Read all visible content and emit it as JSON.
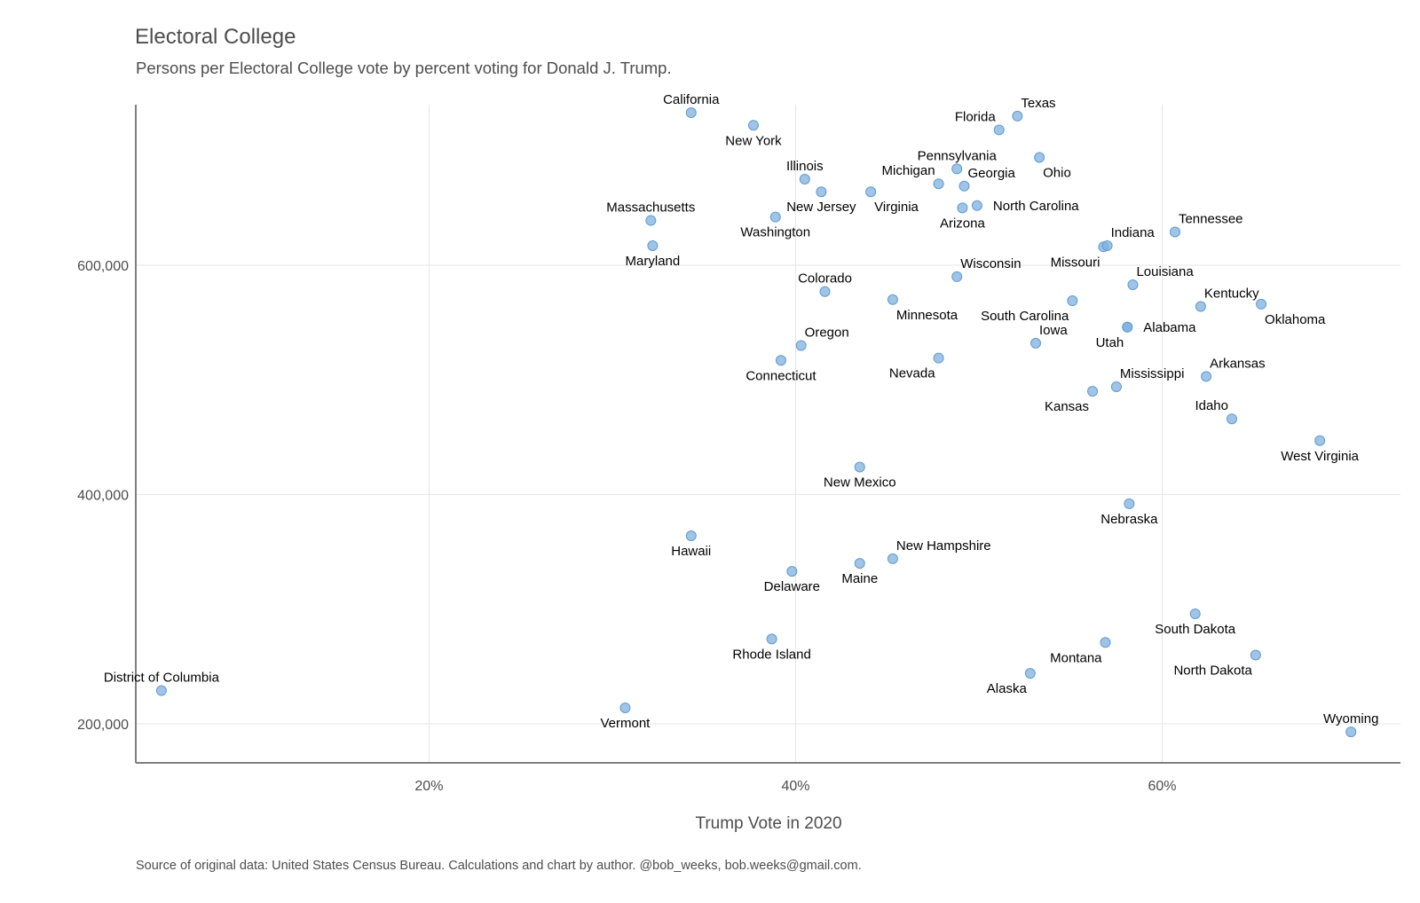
{
  "title": "Electoral College",
  "subtitle": "Persons per Electoral College vote by percent voting for Donald J. Trump.",
  "caption": "Source of original data: United States Census Bureau. Calculations and chart by author. @bob_weeks, bob.weeks@gmail.com.",
  "chart_data": {
    "type": "scatter",
    "title": "Electoral College",
    "subtitle": "Persons per Electoral College vote by percent voting for Donald J. Trump.",
    "xlabel": "Trump Vote in 2020",
    "ylabel": "",
    "xlim": [
      0.04,
      0.73
    ],
    "ylim": [
      166000,
      740000
    ],
    "x_ticks": [
      0.2,
      0.4,
      0.6
    ],
    "x_tick_labels": [
      "20%",
      "40%",
      "60%"
    ],
    "y_ticks": [
      200000,
      400000,
      600000
    ],
    "y_tick_labels": [
      "200,000",
      "400,000",
      "600,000"
    ],
    "grid": true,
    "point_color": "#7fb0dc",
    "points": [
      {
        "label": "District of Columbia",
        "x": 0.054,
        "y": 229000,
        "pos": "above"
      },
      {
        "label": "Vermont",
        "x": 0.307,
        "y": 214000,
        "pos": "below"
      },
      {
        "label": "Hawaii",
        "x": 0.343,
        "y": 364000,
        "pos": "below"
      },
      {
        "label": "California",
        "x": 0.343,
        "y": 733000,
        "pos": "above"
      },
      {
        "label": "Massachusetts",
        "x": 0.321,
        "y": 639000,
        "pos": "above"
      },
      {
        "label": "Maryland",
        "x": 0.322,
        "y": 617000,
        "pos": "below"
      },
      {
        "label": "New York",
        "x": 0.377,
        "y": 722000,
        "pos": "below"
      },
      {
        "label": "Washington",
        "x": 0.389,
        "y": 642000,
        "pos": "below"
      },
      {
        "label": "Illinois",
        "x": 0.405,
        "y": 675000,
        "pos": "above"
      },
      {
        "label": "New Jersey",
        "x": 0.414,
        "y": 664000,
        "pos": "below"
      },
      {
        "label": "Colorado",
        "x": 0.416,
        "y": 577000,
        "pos": "above"
      },
      {
        "label": "Oregon",
        "x": 0.403,
        "y": 530000,
        "pos": "above-right"
      },
      {
        "label": "Connecticut",
        "x": 0.392,
        "y": 517000,
        "pos": "below"
      },
      {
        "label": "Delaware",
        "x": 0.398,
        "y": 333000,
        "pos": "below"
      },
      {
        "label": "Rhode Island",
        "x": 0.387,
        "y": 274000,
        "pos": "below"
      },
      {
        "label": "New Mexico",
        "x": 0.435,
        "y": 424000,
        "pos": "below"
      },
      {
        "label": "Maine",
        "x": 0.435,
        "y": 340000,
        "pos": "below"
      },
      {
        "label": "New Hampshire",
        "x": 0.453,
        "y": 344000,
        "pos": "above-right"
      },
      {
        "label": "Virginia",
        "x": 0.441,
        "y": 664000,
        "pos": "below-right"
      },
      {
        "label": "Minnesota",
        "x": 0.453,
        "y": 570000,
        "pos": "below-right"
      },
      {
        "label": "Michigan",
        "x": 0.478,
        "y": 671000,
        "pos": "above-left"
      },
      {
        "label": "Nevada",
        "x": 0.478,
        "y": 519000,
        "pos": "below-left"
      },
      {
        "label": "Pennsylvania",
        "x": 0.488,
        "y": 684000,
        "pos": "above"
      },
      {
        "label": "Arizona",
        "x": 0.491,
        "y": 650000,
        "pos": "below"
      },
      {
        "label": "Wisconsin",
        "x": 0.488,
        "y": 590000,
        "pos": "above-right"
      },
      {
        "label": "Georgia",
        "x": 0.492,
        "y": 669000,
        "pos": "above-right"
      },
      {
        "label": "North Carolina",
        "x": 0.499,
        "y": 652000,
        "pos": "right"
      },
      {
        "label": "Florida",
        "x": 0.511,
        "y": 718000,
        "pos": "above-left"
      },
      {
        "label": "Texas",
        "x": 0.521,
        "y": 730000,
        "pos": "above-right"
      },
      {
        "label": "Ohio",
        "x": 0.533,
        "y": 694000,
        "pos": "below-right"
      },
      {
        "label": "Iowa",
        "x": 0.531,
        "y": 532000,
        "pos": "above-right"
      },
      {
        "label": "Alaska",
        "x": 0.528,
        "y": 244000,
        "pos": "below-left"
      },
      {
        "label": "South Carolina",
        "x": 0.551,
        "y": 569000,
        "pos": "below-left"
      },
      {
        "label": "Montana",
        "x": 0.569,
        "y": 271000,
        "pos": "below-left"
      },
      {
        "label": "Kansas",
        "x": 0.562,
        "y": 490000,
        "pos": "below-left"
      },
      {
        "label": "Missouri",
        "x": 0.568,
        "y": 616000,
        "pos": "below-left"
      },
      {
        "label": "Indiana",
        "x": 0.57,
        "y": 617000,
        "pos": "above-right"
      },
      {
        "label": "Mississippi",
        "x": 0.575,
        "y": 494000,
        "pos": "above-right"
      },
      {
        "label": "Utah",
        "x": 0.581,
        "y": 546000,
        "pos": "below-left"
      },
      {
        "label": "Alabama",
        "x": 0.581,
        "y": 546000,
        "pos": "right"
      },
      {
        "label": "Nebraska",
        "x": 0.582,
        "y": 392000,
        "pos": "below"
      },
      {
        "label": "Louisiana",
        "x": 0.584,
        "y": 583000,
        "pos": "above-right"
      },
      {
        "label": "Tennessee",
        "x": 0.607,
        "y": 629000,
        "pos": "above-right"
      },
      {
        "label": "South Dakota",
        "x": 0.618,
        "y": 296000,
        "pos": "below"
      },
      {
        "label": "Kentucky",
        "x": 0.621,
        "y": 564000,
        "pos": "above-right"
      },
      {
        "label": "Arkansas",
        "x": 0.624,
        "y": 503000,
        "pos": "above-right"
      },
      {
        "label": "Idaho",
        "x": 0.638,
        "y": 466000,
        "pos": "above-left"
      },
      {
        "label": "North Dakota",
        "x": 0.651,
        "y": 260000,
        "pos": "below-left"
      },
      {
        "label": "Oklahoma",
        "x": 0.654,
        "y": 566000,
        "pos": "below-right"
      },
      {
        "label": "West Virginia",
        "x": 0.686,
        "y": 447000,
        "pos": "below"
      },
      {
        "label": "Wyoming",
        "x": 0.703,
        "y": 193000,
        "pos": "above"
      }
    ]
  }
}
